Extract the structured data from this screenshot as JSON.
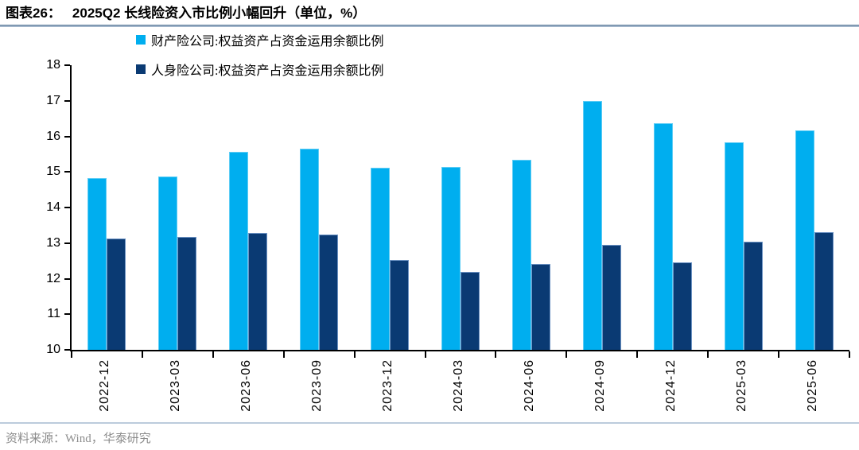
{
  "header": {
    "label": "图表26：",
    "title": "2025Q2 长线险资入市比例小幅回升（单位，%）"
  },
  "legend": [
    {
      "label": "财产险公司:权益资产占资金运用余额比例",
      "color": "#00AEEF",
      "border": "#5FCDF5"
    },
    {
      "label": "人身险公司:权益资产占资金运用余额比例",
      "color": "#0A3A73",
      "border": "#6D93C4"
    }
  ],
  "footer": {
    "source": "资料来源：Wind，华泰研究"
  },
  "colors": {
    "property_series": "#00AEEF",
    "life_series": "#0A3A73",
    "axis": "#000000",
    "title_rule": "#64819F",
    "footer_rule": "#BCCBDC",
    "footer_text": "#8C8C8C"
  },
  "chart_data": {
    "type": "bar",
    "title": "2025Q2 长线险资入市比例小幅回升（单位，%）",
    "xlabel": "",
    "ylabel": "",
    "grid": false,
    "legend_position": "top-left",
    "ylim": [
      10,
      18
    ],
    "ytick_step": 1,
    "categories": [
      "2022-12",
      "2023-03",
      "2023-06",
      "2023-09",
      "2023-12",
      "2024-03",
      "2024-06",
      "2024-09",
      "2024-12",
      "2025-03",
      "2025-06"
    ],
    "series": [
      {
        "name": "财产险公司:权益资产占资金运用余额比例",
        "color": "#00AEEF",
        "border": "#5FCDF5",
        "values": [
          14.83,
          14.88,
          15.57,
          15.66,
          15.11,
          15.13,
          15.33,
          16.99,
          16.37,
          15.84,
          16.17
        ]
      },
      {
        "name": "人身险公司:权益资产占资金运用余额比例",
        "color": "#0A3A73",
        "border": "#6D93C4",
        "values": [
          13.12,
          13.18,
          13.28,
          13.24,
          12.52,
          12.2,
          12.42,
          12.94,
          12.45,
          13.05,
          13.31
        ]
      }
    ]
  }
}
